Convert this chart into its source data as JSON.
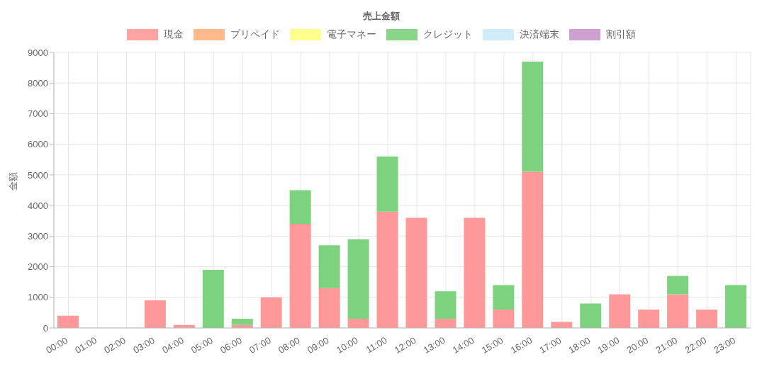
{
  "chart_data": {
    "type": "bar",
    "title": "売上金額",
    "ylabel": "金額",
    "stacked": true,
    "grid": true,
    "legend": "top",
    "categories": [
      "00:00",
      "01:00",
      "02:00",
      "03:00",
      "04:00",
      "05:00",
      "06:00",
      "07:00",
      "08:00",
      "09:00",
      "10:00",
      "11:00",
      "12:00",
      "13:00",
      "14:00",
      "15:00",
      "16:00",
      "17:00",
      "18:00",
      "19:00",
      "20:00",
      "21:00",
      "22:00",
      "23:00"
    ],
    "ylim": [
      0,
      9000
    ],
    "yticks": [
      0,
      1000,
      2000,
      3000,
      4000,
      5000,
      6000,
      7000,
      8000,
      9000
    ],
    "series": [
      {
        "name": "現金",
        "color": "#ff9999",
        "values": [
          400,
          0,
          0,
          900,
          100,
          0,
          100,
          1000,
          3400,
          1300,
          300,
          3800,
          3600,
          300,
          3600,
          600,
          5100,
          200,
          0,
          1100,
          600,
          1100,
          600,
          0
        ]
      },
      {
        "name": "プリペイド",
        "color": "#ffb27f",
        "values": [
          0,
          0,
          0,
          0,
          0,
          0,
          0,
          0,
          0,
          0,
          0,
          0,
          0,
          0,
          0,
          0,
          0,
          0,
          0,
          0,
          0,
          0,
          0,
          0
        ]
      },
      {
        "name": "電子マネー",
        "color": "#ffff80",
        "values": [
          0,
          0,
          0,
          0,
          0,
          0,
          0,
          0,
          0,
          0,
          0,
          0,
          0,
          0,
          0,
          0,
          0,
          0,
          0,
          0,
          0,
          0,
          0,
          0
        ]
      },
      {
        "name": "クレジット",
        "color": "#7dd27d",
        "values": [
          0,
          0,
          0,
          0,
          0,
          1900,
          200,
          0,
          1100,
          1400,
          2600,
          1800,
          0,
          900,
          0,
          800,
          3600,
          0,
          800,
          0,
          0,
          600,
          0,
          1400
        ]
      },
      {
        "name": "決済端末",
        "color": "#cbeafa",
        "values": [
          0,
          0,
          0,
          0,
          0,
          0,
          0,
          0,
          0,
          0,
          0,
          0,
          0,
          0,
          0,
          0,
          0,
          0,
          0,
          0,
          0,
          0,
          0,
          0
        ]
      },
      {
        "name": "割引額",
        "color": "#c896cc",
        "values": [
          0,
          0,
          0,
          0,
          0,
          0,
          0,
          0,
          0,
          0,
          0,
          0,
          0,
          0,
          0,
          0,
          0,
          0,
          0,
          0,
          0,
          0,
          0,
          0
        ]
      }
    ]
  }
}
